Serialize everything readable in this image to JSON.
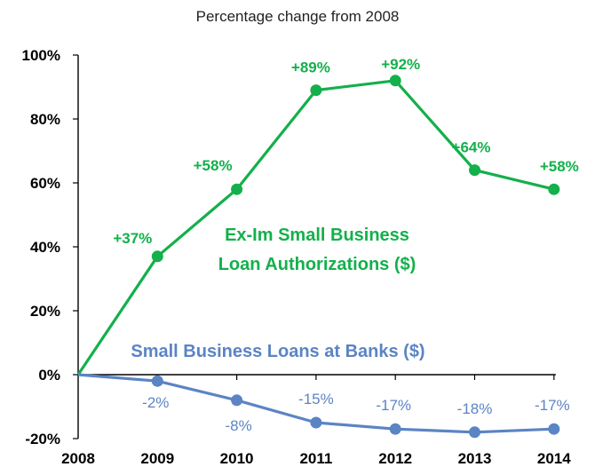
{
  "colors": {
    "green": "#13b04b",
    "blue": "#5b84c4",
    "axis": "#000000"
  },
  "chart_data": {
    "type": "line",
    "title": "Percentage change from 2008",
    "xlabel": "",
    "ylabel": "",
    "categories": [
      "2008",
      "2009",
      "2010",
      "2011",
      "2012",
      "2013",
      "2014"
    ],
    "ylim": [
      -20,
      100
    ],
    "yticks": [
      "-20%",
      "0%",
      "20%",
      "40%",
      "60%",
      "80%",
      "100%"
    ],
    "ytick_values": [
      -20,
      0,
      20,
      40,
      60,
      80,
      100
    ],
    "grid": false,
    "series": [
      {
        "name": "Ex-Im Small Business Loan Authorizations ($)",
        "name_lines": [
          "Ex-Im Small Business",
          "Loan Authorizations ($)"
        ],
        "color": "#13b04b",
        "values": [
          0,
          37,
          58,
          89,
          92,
          64,
          58
        ],
        "labels": [
          "",
          "+37%",
          "+58%",
          "+89%",
          "+92%",
          "+64%",
          "+58%"
        ]
      },
      {
        "name": "Small Business Loans at Banks ($)",
        "name_lines": [
          "Small Business Loans at Banks ($)"
        ],
        "color": "#5b84c4",
        "values": [
          0,
          -2,
          -8,
          -15,
          -17,
          -18,
          -17
        ],
        "labels": [
          "",
          "-2%",
          "-8%",
          "-15%",
          "-17%",
          "-18%",
          "-17%"
        ]
      }
    ]
  }
}
